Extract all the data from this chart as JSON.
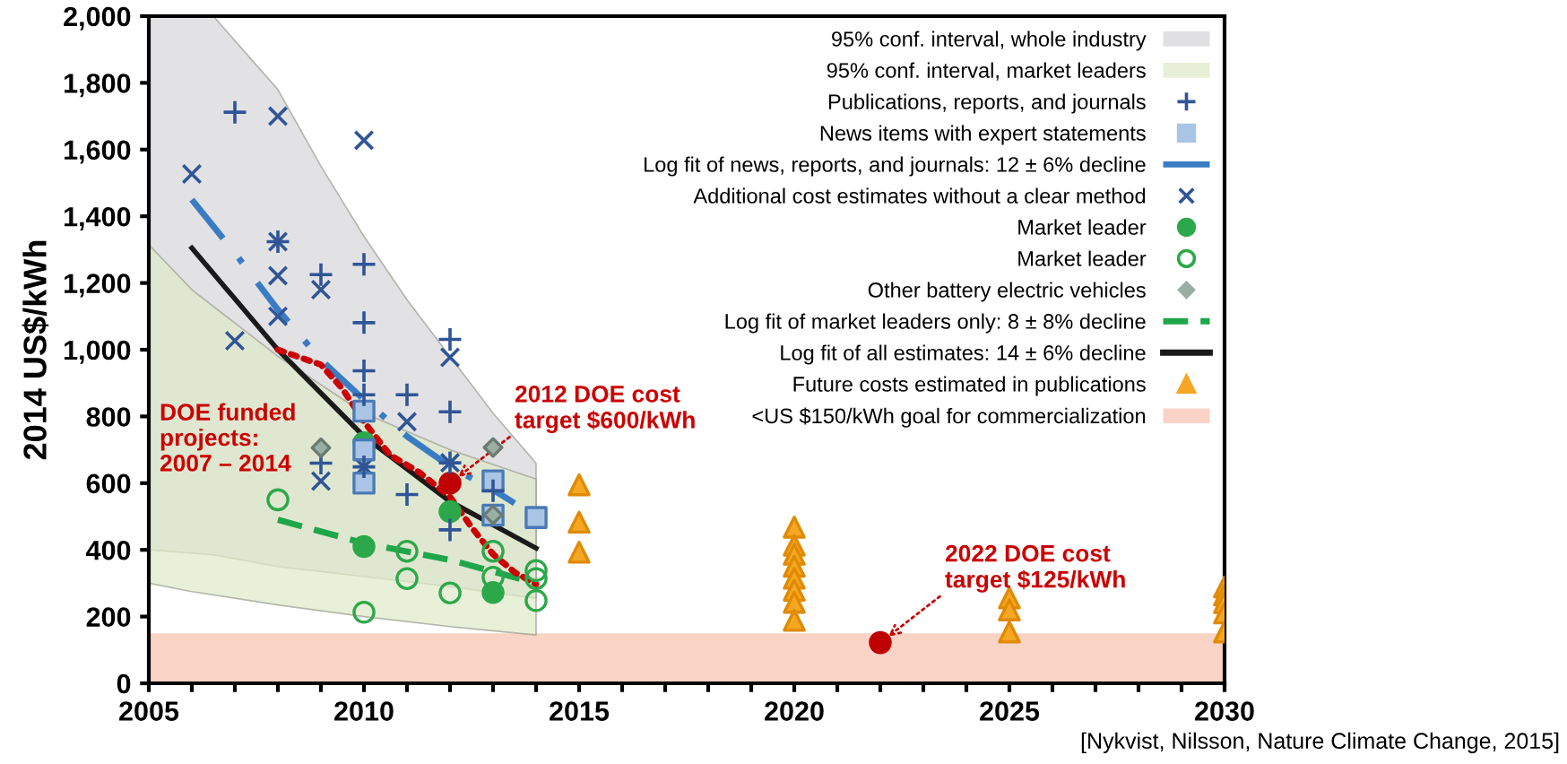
{
  "chart_data": {
    "type": "scatter",
    "ylabel": "2014 US$/kWh",
    "xlim": [
      2005,
      2030
    ],
    "ylim": [
      0,
      2000
    ],
    "xticks": [
      2005,
      {
        "value": 2006,
        "label": null
      },
      {
        "value": 2007,
        "label": null
      },
      {
        "value": 2008,
        "label": null
      },
      {
        "value": 2009,
        "label": null
      },
      2010,
      {
        "value": 2011,
        "label": null
      },
      {
        "value": 2012,
        "label": null
      },
      {
        "value": 2013,
        "label": null
      },
      {
        "value": 2014,
        "label": null
      },
      2015,
      {
        "value": 2016,
        "label": null
      },
      {
        "value": 2017,
        "label": null
      },
      {
        "value": 2018,
        "label": null
      },
      {
        "value": 2019,
        "label": null
      },
      2020,
      {
        "value": 2021,
        "label": null
      },
      {
        "value": 2022,
        "label": null
      },
      {
        "value": 2023,
        "label": null
      },
      {
        "value": 2024,
        "label": null
      },
      2025,
      {
        "value": 2026,
        "label": null
      },
      {
        "value": 2027,
        "label": null
      },
      {
        "value": 2028,
        "label": null
      },
      {
        "value": 2029,
        "label": null
      },
      2030
    ],
    "yticks": [
      0,
      200,
      400,
      600,
      800,
      {
        "value": 1000,
        "label": "1,000"
      },
      {
        "value": 1200,
        "label": "1,200"
      },
      {
        "value": 1400,
        "label": "1,400"
      },
      {
        "value": 1600,
        "label": "1,600"
      },
      {
        "value": 1800,
        "label": "1,800"
      },
      {
        "value": 2000,
        "label": "2,000"
      }
    ],
    "grid": false,
    "legend": "top right",
    "bands": [
      {
        "axis": "y",
        "from": 0,
        "to": 150,
        "label": "<US $150/kWh goal for commercialization",
        "color": "#f9d3c6"
      }
    ],
    "series": [
      {
        "name": "95% conf. interval, whole industry",
        "type": "line",
        "color": "#d5d6da",
        "x": [
          2005,
          2006.5,
          2008,
          2009,
          2010,
          2011,
          2012,
          2013,
          2014
        ],
        "values": [
          null,
          null,
          null,
          null,
          null,
          null,
          null,
          null,
          null
        ],
        "lower": [
          400,
          385,
          350,
          335,
          320,
          305,
          290,
          272,
          255
        ],
        "upper": [
          2000,
          2000,
          1780,
          1550,
          1340,
          1150,
          980,
          810,
          660
        ]
      },
      {
        "name": "95% conf. interval, market leaders",
        "type": "line",
        "color": "#dfe9c8",
        "x": [
          2005,
          2006,
          2008,
          2010,
          2012,
          2014
        ],
        "values": [
          null,
          null,
          null,
          null,
          null,
          null
        ],
        "lower": [
          300,
          275,
          235,
          200,
          170,
          145
        ],
        "upper": [
          1315,
          1180,
          980,
          810,
          700,
          612
        ]
      },
      {
        "name": "Publications, reports, and journals",
        "type": "scatter",
        "marker": "plus",
        "color": "#2f5597",
        "x": [
          2007,
          2008,
          2009,
          2009,
          2010,
          2010,
          2010,
          2010,
          2010,
          2011,
          2011,
          2012,
          2012,
          2012,
          2012,
          2013
        ],
        "values": [
          1712,
          1324,
          1225,
          660,
          1256,
          1081,
          937,
          865,
          649,
          865,
          566,
          1031,
          814,
          661,
          460,
          577
        ]
      },
      {
        "name": "News items with expert statements",
        "type": "scatter",
        "marker": "square",
        "color": "#a9c4e4",
        "x": [
          2010,
          2010,
          2010,
          2013,
          2013,
          2014
        ],
        "values": [
          816,
          700,
          600,
          607,
          504,
          497
        ]
      },
      {
        "name": "Log fit of news, reports, and journals: 12 ± 6% decline",
        "type": "line",
        "line_style": "dashdot",
        "marker": "none",
        "color": "#3a7cc3",
        "x": [
          2006,
          2007,
          2008,
          2009,
          2010,
          2011,
          2012,
          2013,
          2013.5
        ],
        "values": [
          1450,
          1290,
          1120,
          970,
          850,
          740,
          650,
          580,
          540
        ]
      },
      {
        "name": "Additional cost estimates without a clear method",
        "type": "scatter",
        "marker": "cross",
        "color": "#2f5597",
        "x": [
          2006,
          2007,
          2008,
          2008,
          2008,
          2008,
          2009,
          2009,
          2010,
          2010,
          2011,
          2012,
          2012
        ],
        "values": [
          1527,
          1027,
          1700,
          1324,
          1222,
          1100,
          1180,
          606,
          1628,
          649,
          784,
          977,
          661
        ]
      },
      {
        "name": "Market leader",
        "type": "scatter",
        "marker": "circle",
        "color": "#2ca84a",
        "x": [
          2010,
          2010,
          2012,
          2013
        ],
        "values": [
          721,
          410,
          515,
          272
        ]
      },
      {
        "name": "Market leader",
        "type": "scatter",
        "marker": "open circle",
        "color": "#2ca84a",
        "x": [
          2008,
          2010,
          2011,
          2011,
          2012,
          2013,
          2013,
          2014,
          2014,
          2014
        ],
        "values": [
          550,
          213,
          396,
          314,
          271,
          396,
          318,
          338,
          314,
          248
        ]
      },
      {
        "name": "Other battery electric vehicles",
        "type": "scatter",
        "marker": "diamond",
        "color": "#9aaea3",
        "x": [
          2009,
          2013,
          2013
        ],
        "values": [
          706,
          707,
          505
        ]
      },
      {
        "name": "Log fit of market leaders only: 8 ± 8% decline",
        "type": "line",
        "line_style": "dashed",
        "marker": "none",
        "color": "#1fa64a",
        "x": [
          2008,
          2010,
          2012,
          2014
        ],
        "values": [
          490,
          420,
          370,
          300
        ]
      },
      {
        "name": "Log fit of all estimates: 14 ± 6% decline",
        "type": "line",
        "line_style": "solid",
        "marker": "none",
        "color": "#1a1a1a",
        "x": [
          2006,
          2008,
          2010,
          2012,
          2014
        ],
        "values": [
          1305,
          1000,
          740,
          545,
          405
        ]
      },
      {
        "type": "line",
        "line_style": "dotted",
        "marker": "none",
        "color": "#cc0000",
        "x": [
          2008,
          2009,
          2009.5,
          2010,
          2010.6,
          2011.3,
          2012,
          2012.5,
          2013,
          2013.5,
          2014
        ],
        "values": [
          1000,
          955,
          883,
          784,
          685,
          631,
          559,
          468,
          387,
          333,
          297
        ]
      },
      {
        "name": "Future costs estimated in publications",
        "type": "scatter",
        "marker": "triangle",
        "color": "#f5a623",
        "x": [
          2015,
          2015,
          2015,
          2020,
          2020,
          2020,
          2020,
          2020,
          2020,
          2020,
          2020,
          2025,
          2025,
          2025,
          2030,
          2030,
          2030,
          2030,
          2030
        ],
        "values": [
          595,
          483,
          393,
          468,
          414,
          387,
          351,
          315,
          279,
          243,
          189,
          256,
          220,
          154,
          289,
          265,
          242,
          211,
          154
        ]
      },
      {
        "marker": "circle",
        "color": "#c00000",
        "x": [
          2012,
          2022
        ],
        "values": [
          600,
          122
        ]
      }
    ],
    "annotations": [
      {
        "text": "DOE funded\nprojects:\n2007 – 2014",
        "x": 2008,
        "y": 1000
      },
      {
        "text": "2012 DOE cost\ntarget $600/kWh",
        "x": 2012,
        "y": 600
      },
      {
        "text": "2022 DOE cost\ntarget $125/kWh",
        "x": 2022,
        "y": 122
      },
      "[Nykvist, Nilsson, Nature Climate Change, 2015]"
    ]
  }
}
